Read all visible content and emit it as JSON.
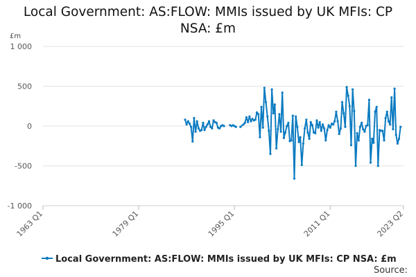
{
  "title_line1": "Local Government: AS:FLOW: MMIs issued by UK MFIs: CP",
  "title_line2": "NSA: £m",
  "source_label": "Source:",
  "chart_data": {
    "type": "line",
    "unit_label": "£m",
    "y_ticks": [
      "1 000",
      "500",
      "0",
      "-500",
      "-1 000"
    ],
    "y_tick_values": [
      1000,
      500,
      0,
      -500,
      -1000
    ],
    "ylim": [
      -1000,
      1000
    ],
    "x_ticks": [
      "1963 Q1",
      "1979 Q1",
      "1995 Q1",
      "2011 Q1",
      "2023 Q2"
    ],
    "x_tick_values": [
      1963.0,
      1979.0,
      1995.0,
      2011.0,
      2023.25
    ],
    "xlim": [
      1963.0,
      2023.25
    ],
    "grid": true,
    "legend_position": "bottom",
    "color": "#0b7bc1",
    "series": [
      {
        "name": "Local Government: AS:FLOW: MMIs issued by UK MFIs: CP NSA: £m",
        "segments": [
          [
            [
              1986.75,
              80
            ],
            [
              1987.0,
              20
            ],
            [
              1987.25,
              60
            ],
            [
              1987.5,
              30
            ],
            [
              1987.75,
              -10
            ],
            [
              1988.0,
              -195
            ],
            [
              1988.25,
              100
            ],
            [
              1988.5,
              -70
            ],
            [
              1988.75,
              60
            ],
            [
              1989.0,
              -30
            ],
            [
              1989.25,
              -60
            ],
            [
              1989.5,
              -50
            ],
            [
              1989.75,
              40
            ],
            [
              1990.0,
              -50
            ],
            [
              1990.25,
              -10
            ],
            [
              1990.5,
              20
            ],
            [
              1990.75,
              60
            ],
            [
              1991.0,
              -10
            ],
            [
              1991.25,
              -30
            ],
            [
              1991.5,
              70
            ],
            [
              1991.75,
              50
            ],
            [
              1992.0,
              40
            ],
            [
              1992.25,
              -20
            ],
            [
              1992.5,
              -30
            ],
            [
              1992.75,
              0
            ],
            [
              1993.0,
              10
            ],
            [
              1993.25,
              0
            ]
          ],
          [
            [
              1994.25,
              10
            ],
            [
              1994.5,
              0
            ],
            [
              1994.75,
              10
            ],
            [
              1995.0,
              0
            ],
            [
              1995.25,
              -10
            ]
          ],
          [
            [
              1996.0,
              -10
            ],
            [
              1996.5,
              20
            ],
            [
              1996.75,
              40
            ],
            [
              1997.0,
              110
            ],
            [
              1997.25,
              50
            ],
            [
              1997.5,
              120
            ],
            [
              1997.75,
              60
            ],
            [
              1998.0,
              90
            ],
            [
              1998.25,
              70
            ],
            [
              1998.5,
              80
            ],
            [
              1998.75,
              170
            ],
            [
              1999.0,
              150
            ],
            [
              1999.25,
              -140
            ],
            [
              1999.5,
              240
            ],
            [
              1999.75,
              -20
            ],
            [
              2000.0,
              480
            ],
            [
              2000.25,
              300
            ],
            [
              2000.5,
              120
            ],
            [
              2000.75,
              -60
            ],
            [
              2001.0,
              -350
            ],
            [
              2001.25,
              460
            ],
            [
              2001.5,
              160
            ],
            [
              2001.75,
              270
            ],
            [
              2002.0,
              -280
            ],
            [
              2002.25,
              -40
            ],
            [
              2002.5,
              150
            ],
            [
              2002.75,
              -70
            ],
            [
              2003.0,
              420
            ],
            [
              2003.25,
              -150
            ],
            [
              2003.5,
              -80
            ],
            [
              2003.75,
              0
            ],
            [
              2004.0,
              40
            ],
            [
              2004.25,
              -190
            ],
            [
              2004.5,
              -180
            ],
            [
              2004.75,
              130
            ],
            [
              2005.0,
              -660
            ],
            [
              2005.25,
              120
            ],
            [
              2005.5,
              -10
            ],
            [
              2005.75,
              -200
            ],
            [
              2006.0,
              -140
            ],
            [
              2006.25,
              -490
            ],
            [
              2006.5,
              -220
            ],
            [
              2006.75,
              -30
            ],
            [
              2007.0,
              80
            ],
            [
              2007.25,
              -80
            ],
            [
              2007.5,
              -160
            ],
            [
              2007.75,
              50
            ],
            [
              2008.0,
              10
            ],
            [
              2008.25,
              -80
            ],
            [
              2008.5,
              -90
            ],
            [
              2008.75,
              70
            ],
            [
              2009.0,
              -20
            ],
            [
              2009.25,
              50
            ],
            [
              2009.5,
              -60
            ],
            [
              2009.75,
              20
            ],
            [
              2010.0,
              -30
            ],
            [
              2010.25,
              -180
            ],
            [
              2010.5,
              -50
            ],
            [
              2010.75,
              10
            ],
            [
              2011.0,
              -20
            ],
            [
              2011.25,
              30
            ],
            [
              2011.5,
              20
            ],
            [
              2011.75,
              60
            ],
            [
              2012.0,
              180
            ],
            [
              2012.25,
              60
            ],
            [
              2012.5,
              -100
            ],
            [
              2012.75,
              -30
            ],
            [
              2013.0,
              300
            ],
            [
              2013.25,
              160
            ],
            [
              2013.5,
              -10
            ],
            [
              2013.75,
              490
            ],
            [
              2014.0,
              380
            ],
            [
              2014.25,
              250
            ],
            [
              2014.5,
              -240
            ],
            [
              2014.75,
              460
            ],
            [
              2015.0,
              190
            ],
            [
              2015.25,
              -500
            ],
            [
              2015.5,
              -90
            ],
            [
              2015.75,
              -180
            ],
            [
              2016.0,
              -10
            ],
            [
              2016.25,
              40
            ],
            [
              2016.5,
              -40
            ],
            [
              2016.75,
              -70
            ],
            [
              2017.0,
              0
            ],
            [
              2017.25,
              10
            ],
            [
              2017.5,
              330
            ],
            [
              2017.75,
              -460
            ],
            [
              2018.0,
              -160
            ],
            [
              2018.25,
              -210
            ],
            [
              2018.5,
              180
            ],
            [
              2018.75,
              240
            ],
            [
              2019.0,
              -500
            ],
            [
              2019.25,
              -50
            ],
            [
              2019.5,
              -60
            ],
            [
              2019.75,
              -60
            ],
            [
              2020.0,
              -180
            ],
            [
              2020.25,
              100
            ],
            [
              2020.5,
              180
            ],
            [
              2020.75,
              60
            ],
            [
              2021.0,
              20
            ],
            [
              2021.25,
              360
            ],
            [
              2021.5,
              -40
            ],
            [
              2021.75,
              470
            ],
            [
              2022.0,
              -110
            ],
            [
              2022.25,
              -220
            ],
            [
              2022.5,
              -160
            ],
            [
              2022.75,
              -10
            ]
          ]
        ]
      }
    ]
  }
}
